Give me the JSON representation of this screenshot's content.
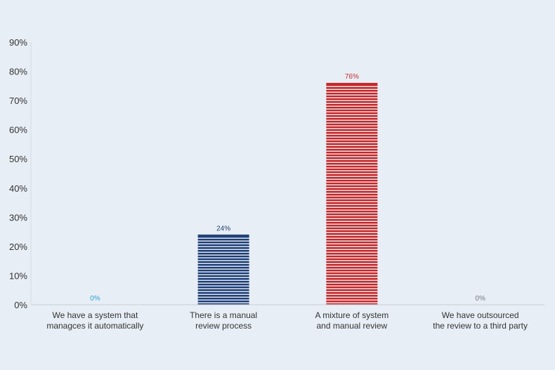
{
  "chart_data": {
    "type": "bar",
    "categories": [
      [
        "We have a system that",
        "managces it automatically"
      ],
      [
        "There is a manual",
        "review process"
      ],
      [
        "A mixture of system",
        "and manual review"
      ],
      [
        "We have outsourced",
        "the review to a third party"
      ]
    ],
    "values": [
      0,
      24,
      76,
      0
    ],
    "data_labels": [
      "0%",
      "24%",
      "76%",
      "0%"
    ],
    "bar_colors": [
      "#2a9fd6",
      "#1f3f77",
      "#c62828",
      "#888888"
    ],
    "label_colors": [
      "#2a9fd6",
      "#1f3f77",
      "#c62828",
      "#777777"
    ],
    "y_ticks": [
      0,
      10,
      20,
      30,
      40,
      50,
      60,
      70,
      80,
      90
    ],
    "y_tick_labels": [
      "0%",
      "10%",
      "20%",
      "30%",
      "40%",
      "50%",
      "60%",
      "70%",
      "80%",
      "90%"
    ],
    "ylim": [
      0,
      90
    ],
    "grid": false,
    "legend": "none",
    "bar_fill": "horizontal-stripes",
    "title": "",
    "xlabel": "",
    "ylabel": ""
  }
}
